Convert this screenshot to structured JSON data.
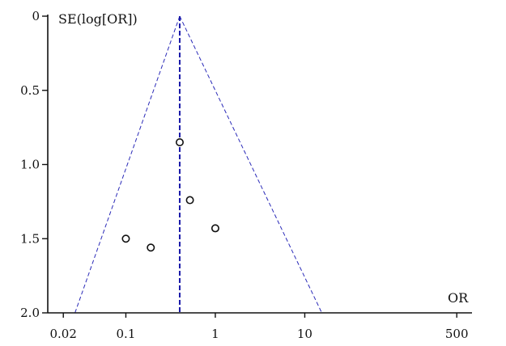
{
  "chart_data": {
    "type": "scatter",
    "subtype": "funnel-plot",
    "x_axis": {
      "label": "OR",
      "scale": "log",
      "range": [
        0.0134,
        740
      ],
      "ticks": [
        {
          "value": 0.02,
          "label": "0.02"
        },
        {
          "value": 0.1,
          "label": "0.1"
        },
        {
          "value": 1,
          "label": "1"
        },
        {
          "value": 10,
          "label": "10"
        },
        {
          "value": 500,
          "label": "500"
        }
      ]
    },
    "y_axis": {
      "label": "SE(log[OR])",
      "reversed": true,
      "range": [
        0,
        2.0
      ],
      "ticks": [
        {
          "value": 0,
          "label": "0"
        },
        {
          "value": 0.5,
          "label": "0.5"
        },
        {
          "value": 1.0,
          "label": "1.0"
        },
        {
          "value": 1.5,
          "label": "1.5"
        },
        {
          "value": 2.0,
          "label": "2.0"
        }
      ]
    },
    "pooled_or": 0.4,
    "funnel": {
      "apex": {
        "or": 0.4,
        "se": 0
      },
      "left_base": {
        "or": 0.027,
        "se": 2.0
      },
      "right_base": {
        "or": 15.5,
        "se": 2.0
      }
    },
    "points": [
      {
        "or": 0.4,
        "se": 0.85
      },
      {
        "or": 0.52,
        "se": 1.24
      },
      {
        "or": 1.0,
        "se": 1.43
      },
      {
        "or": 0.1,
        "se": 1.5
      },
      {
        "or": 0.19,
        "se": 1.56
      }
    ],
    "colors": {
      "axis": "#111111",
      "funnel_line": "#2a2ab8",
      "pooled_line": "#1a1aa8",
      "marker": "#111111"
    },
    "grid": false,
    "legend": "none"
  }
}
